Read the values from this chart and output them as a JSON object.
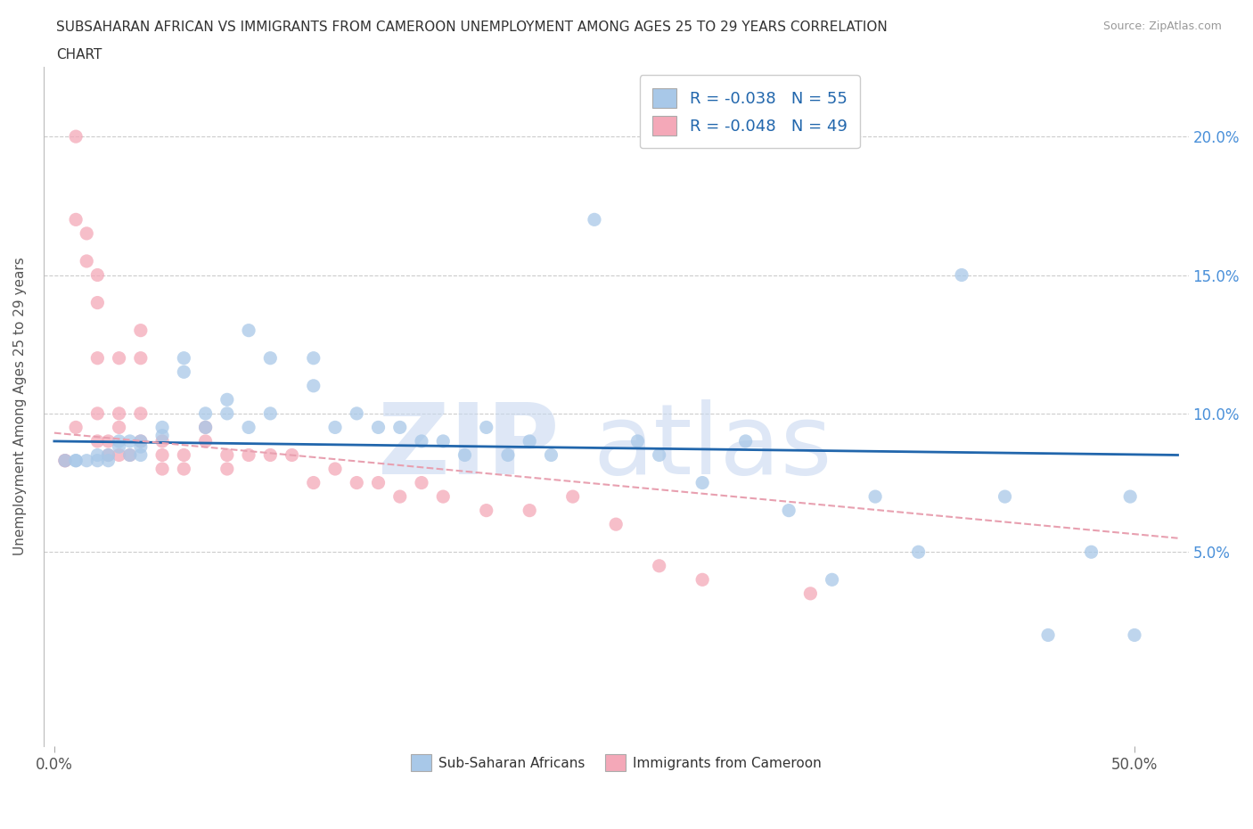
{
  "title_line1": "SUBSAHARAN AFRICAN VS IMMIGRANTS FROM CAMEROON UNEMPLOYMENT AMONG AGES 25 TO 29 YEARS CORRELATION",
  "title_line2": "CHART",
  "source": "Source: ZipAtlas.com",
  "ylabel": "Unemployment Among Ages 25 to 29 years",
  "legend1_label": "R = -0.038   N = 55",
  "legend2_label": "R = -0.048   N = 49",
  "legend_bottom1": "Sub-Saharan Africans",
  "legend_bottom2": "Immigrants from Cameroon",
  "blue_color": "#a8c8e8",
  "pink_color": "#f4a8b8",
  "blue_line_color": "#2166ac",
  "pink_line_color": "#e8a0b0",
  "blue_scatter_x": [
    0.005,
    0.01,
    0.01,
    0.015,
    0.02,
    0.02,
    0.025,
    0.025,
    0.03,
    0.03,
    0.035,
    0.035,
    0.04,
    0.04,
    0.04,
    0.05,
    0.05,
    0.06,
    0.06,
    0.07,
    0.07,
    0.08,
    0.08,
    0.09,
    0.09,
    0.1,
    0.1,
    0.12,
    0.12,
    0.13,
    0.14,
    0.15,
    0.16,
    0.17,
    0.18,
    0.19,
    0.2,
    0.21,
    0.22,
    0.23,
    0.25,
    0.27,
    0.28,
    0.3,
    0.32,
    0.34,
    0.36,
    0.38,
    0.4,
    0.42,
    0.44,
    0.46,
    0.48,
    0.498,
    0.5
  ],
  "blue_scatter_y": [
    0.083,
    0.083,
    0.083,
    0.083,
    0.083,
    0.085,
    0.083,
    0.085,
    0.09,
    0.088,
    0.09,
    0.085,
    0.09,
    0.085,
    0.088,
    0.095,
    0.092,
    0.12,
    0.115,
    0.095,
    0.1,
    0.105,
    0.1,
    0.13,
    0.095,
    0.1,
    0.12,
    0.12,
    0.11,
    0.095,
    0.1,
    0.095,
    0.095,
    0.09,
    0.09,
    0.085,
    0.095,
    0.085,
    0.09,
    0.085,
    0.17,
    0.09,
    0.085,
    0.075,
    0.09,
    0.065,
    0.04,
    0.07,
    0.05,
    0.15,
    0.07,
    0.02,
    0.05,
    0.07,
    0.02
  ],
  "pink_scatter_x": [
    0.005,
    0.005,
    0.01,
    0.01,
    0.01,
    0.015,
    0.015,
    0.02,
    0.02,
    0.02,
    0.02,
    0.02,
    0.025,
    0.025,
    0.03,
    0.03,
    0.03,
    0.03,
    0.035,
    0.04,
    0.04,
    0.04,
    0.04,
    0.05,
    0.05,
    0.05,
    0.06,
    0.06,
    0.07,
    0.07,
    0.08,
    0.08,
    0.09,
    0.1,
    0.11,
    0.12,
    0.13,
    0.14,
    0.15,
    0.16,
    0.17,
    0.18,
    0.2,
    0.22,
    0.24,
    0.26,
    0.28,
    0.3,
    0.35
  ],
  "pink_scatter_y": [
    0.083,
    0.083,
    0.2,
    0.17,
    0.095,
    0.165,
    0.155,
    0.15,
    0.14,
    0.12,
    0.1,
    0.09,
    0.09,
    0.085,
    0.12,
    0.1,
    0.095,
    0.085,
    0.085,
    0.13,
    0.12,
    0.1,
    0.09,
    0.09,
    0.085,
    0.08,
    0.085,
    0.08,
    0.095,
    0.09,
    0.085,
    0.08,
    0.085,
    0.085,
    0.085,
    0.075,
    0.08,
    0.075,
    0.075,
    0.07,
    0.075,
    0.07,
    0.065,
    0.065,
    0.07,
    0.06,
    0.045,
    0.04,
    0.035
  ],
  "blue_trend_x": [
    0.0,
    0.52
  ],
  "blue_trend_y": [
    0.09,
    0.085
  ],
  "pink_trend_x": [
    0.0,
    0.52
  ],
  "pink_trend_y": [
    0.093,
    0.055
  ],
  "xtick_positions": [
    0.0,
    0.5
  ],
  "xtick_labels": [
    "0.0%",
    "50.0%"
  ],
  "ytick_positions": [
    0.05,
    0.1,
    0.15,
    0.2
  ],
  "ytick_labels": [
    "5.0%",
    "10.0%",
    "15.0%",
    "20.0%"
  ],
  "xmin": -0.005,
  "xmax": 0.525,
  "ymin": -0.02,
  "ymax": 0.225
}
